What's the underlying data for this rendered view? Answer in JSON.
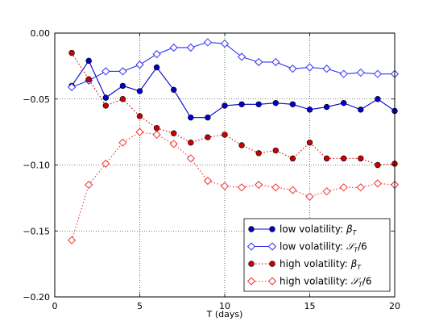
{
  "chart_data": {
    "type": "line",
    "xlabel": "T (days)",
    "ylabel": "",
    "xlim": [
      0,
      20
    ],
    "ylim": [
      -0.2,
      0.0
    ],
    "xticks": [
      0,
      5,
      10,
      15,
      20
    ],
    "xtick_labels": [
      "0",
      "5",
      "10",
      "15",
      "20"
    ],
    "yticks": [
      -0.2,
      -0.15,
      -0.1,
      -0.05,
      0.0
    ],
    "ytick_labels": [
      "−0.20",
      "−0.15",
      "−0.10",
      "−0.05",
      "0.00"
    ],
    "grid": true,
    "legend_position": "bottom-right",
    "x": [
      1,
      2,
      3,
      4,
      5,
      6,
      7,
      8,
      9,
      10,
      11,
      12,
      13,
      14,
      15,
      16,
      17,
      18,
      19,
      20
    ],
    "series": [
      {
        "legend_prefix": "low volatility: ",
        "legend_math": "β",
        "legend_sub": "T",
        "legend_suffix": "",
        "color": "#0000cc",
        "linestyle": "solid",
        "marker": "filled-circle",
        "values": [
          -0.04,
          -0.021,
          -0.049,
          -0.04,
          -0.044,
          -0.026,
          -0.043,
          -0.064,
          -0.064,
          -0.055,
          -0.054,
          -0.054,
          -0.053,
          -0.054,
          -0.058,
          -0.056,
          -0.053,
          -0.058,
          -0.05,
          -0.059
        ]
      },
      {
        "legend_prefix": "low volatility: ",
        "legend_math": "𝒮",
        "legend_sub": "T",
        "legend_suffix": "/6",
        "color": "#3333ee",
        "linestyle": "solid",
        "marker": "open-diamond",
        "values": [
          -0.041,
          -0.036,
          -0.029,
          -0.029,
          -0.024,
          -0.016,
          -0.011,
          -0.011,
          -0.007,
          -0.008,
          -0.018,
          -0.022,
          -0.022,
          -0.027,
          -0.026,
          -0.027,
          -0.031,
          -0.03,
          -0.031,
          -0.031
        ]
      },
      {
        "legend_prefix": "high volatility: ",
        "legend_math": "β",
        "legend_sub": "T",
        "legend_suffix": "",
        "color": "#cc0000",
        "linestyle": "dotted",
        "marker": "filled-circle",
        "values": [
          -0.015,
          -0.035,
          -0.055,
          -0.05,
          -0.063,
          -0.072,
          -0.076,
          -0.083,
          -0.079,
          -0.077,
          -0.085,
          -0.091,
          -0.089,
          -0.095,
          -0.083,
          -0.095,
          -0.095,
          -0.095,
          -0.1,
          -0.099
        ]
      },
      {
        "legend_prefix": "high volatility: ",
        "legend_math": "𝒮",
        "legend_sub": "T",
        "legend_suffix": "/6",
        "color": "#ee3333",
        "linestyle": "dotted",
        "marker": "open-diamond",
        "values": [
          -0.157,
          -0.115,
          -0.099,
          -0.083,
          -0.075,
          -0.077,
          -0.084,
          -0.095,
          -0.112,
          -0.116,
          -0.117,
          -0.115,
          -0.117,
          -0.119,
          -0.124,
          -0.12,
          -0.117,
          -0.117,
          -0.114,
          -0.115
        ]
      }
    ]
  }
}
